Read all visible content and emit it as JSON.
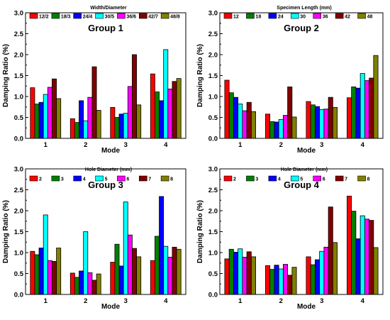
{
  "chart_data": [
    {
      "type": "bar",
      "title": "Group 1",
      "legend_title": "Width/Diameter",
      "xlabel": "Mode",
      "ylabel": "Damping Ratio (%)",
      "ylim": [
        0,
        3.0
      ],
      "yticks": [
        "0.0",
        "0.5",
        "1.0",
        "1.5",
        "2.0",
        "2.5",
        "3.0"
      ],
      "categories": [
        "1",
        "2",
        "3",
        "4"
      ],
      "series": [
        {
          "name": "12/2",
          "color": "#ff0000",
          "values": [
            1.21,
            0.47,
            0.74,
            1.54
          ]
        },
        {
          "name": "18/3",
          "color": "#008000",
          "values": [
            0.82,
            0.38,
            0.5,
            1.11
          ]
        },
        {
          "name": "24/4",
          "color": "#0000ff",
          "values": [
            0.86,
            0.9,
            0.58,
            0.9
          ]
        },
        {
          "name": "30/5",
          "color": "#00ffff",
          "values": [
            1.05,
            0.42,
            0.6,
            2.12
          ]
        },
        {
          "name": "36/6",
          "color": "#ff00ff",
          "values": [
            1.22,
            0.98,
            1.24,
            1.18
          ]
        },
        {
          "name": "42/7",
          "color": "#800000",
          "values": [
            1.42,
            1.71,
            2.0,
            1.36
          ]
        },
        {
          "name": "48/8",
          "color": "#808000",
          "values": [
            0.95,
            0.67,
            0.8,
            1.43
          ]
        }
      ]
    },
    {
      "type": "bar",
      "title": "Group 2",
      "legend_title": "Specimen Length (mm)",
      "xlabel": "Mode",
      "ylabel": "Damping Ratio (%)",
      "ylim": [
        0,
        3.0
      ],
      "yticks": [
        "0.0",
        "0.5",
        "1.0",
        "1.5",
        "2.0",
        "2.5",
        "3.0"
      ],
      "categories": [
        "1",
        "2",
        "3",
        "4"
      ],
      "series": [
        {
          "name": "12",
          "color": "#ff0000",
          "values": [
            1.39,
            0.58,
            0.88,
            0.97
          ]
        },
        {
          "name": "18",
          "color": "#008000",
          "values": [
            1.09,
            0.4,
            0.8,
            1.23
          ]
        },
        {
          "name": "24",
          "color": "#0000ff",
          "values": [
            0.98,
            0.39,
            0.76,
            1.2
          ]
        },
        {
          "name": "30",
          "color": "#00ffff",
          "values": [
            0.82,
            0.45,
            0.69,
            1.55
          ]
        },
        {
          "name": "36",
          "color": "#ff00ff",
          "values": [
            0.66,
            0.55,
            0.7,
            1.38
          ]
        },
        {
          "name": "42",
          "color": "#800000",
          "values": [
            0.86,
            1.23,
            0.98,
            1.44
          ]
        },
        {
          "name": "48",
          "color": "#808000",
          "values": [
            0.64,
            0.51,
            0.74,
            1.98
          ]
        }
      ]
    },
    {
      "type": "bar",
      "title": "Group 3",
      "legend_title": "Hole Diameter (mm)",
      "xlabel": "Mode",
      "ylabel": "Damping Ratio (%)",
      "ylim": [
        0,
        3.0
      ],
      "yticks": [
        "0.0",
        "0.5",
        "1.0",
        "1.5",
        "2.0",
        "2.5",
        "3.0"
      ],
      "categories": [
        "1",
        "2",
        "3",
        "4"
      ],
      "series": [
        {
          "name": "2",
          "color": "#ff0000",
          "values": [
            1.03,
            0.51,
            0.77,
            0.81
          ]
        },
        {
          "name": "3",
          "color": "#008000",
          "values": [
            0.95,
            0.41,
            1.2,
            1.39
          ]
        },
        {
          "name": "4",
          "color": "#0000ff",
          "values": [
            1.11,
            0.56,
            0.68,
            2.34
          ]
        },
        {
          "name": "5",
          "color": "#00ffff",
          "values": [
            1.9,
            1.5,
            2.21,
            1.15
          ]
        },
        {
          "name": "6",
          "color": "#ff00ff",
          "values": [
            0.81,
            0.52,
            1.42,
            0.89
          ]
        },
        {
          "name": "7",
          "color": "#800000",
          "values": [
            0.79,
            0.34,
            1.1,
            1.13
          ]
        },
        {
          "name": "8",
          "color": "#808000",
          "values": [
            1.11,
            0.49,
            0.9,
            1.08
          ]
        }
      ]
    },
    {
      "type": "bar",
      "title": "Group 4",
      "legend_title": "Hole Diameter (mm)",
      "xlabel": "Mode",
      "ylabel": "Damping Ratio (%)",
      "ylim": [
        0,
        3.0
      ],
      "yticks": [
        "0.0",
        "0.5",
        "1.0",
        "1.5",
        "2.0",
        "2.5",
        "3.0"
      ],
      "categories": [
        "1",
        "2",
        "3",
        "4"
      ],
      "series": [
        {
          "name": "2",
          "color": "#ff0000",
          "values": [
            0.85,
            0.69,
            0.9,
            2.35
          ]
        },
        {
          "name": "3",
          "color": "#008000",
          "values": [
            1.08,
            0.6,
            0.71,
            1.99
          ]
        },
        {
          "name": "4",
          "color": "#0000ff",
          "values": [
            1.01,
            0.7,
            0.83,
            1.33
          ]
        },
        {
          "name": "5",
          "color": "#00ffff",
          "values": [
            1.09,
            0.61,
            1.03,
            1.88
          ]
        },
        {
          "name": "6",
          "color": "#ff00ff",
          "values": [
            0.89,
            0.72,
            1.13,
            1.8
          ]
        },
        {
          "name": "7",
          "color": "#800000",
          "values": [
            1.02,
            0.46,
            2.09,
            1.77
          ]
        },
        {
          "name": "8",
          "color": "#808000",
          "values": [
            0.9,
            0.65,
            1.24,
            1.12
          ]
        }
      ]
    }
  ]
}
